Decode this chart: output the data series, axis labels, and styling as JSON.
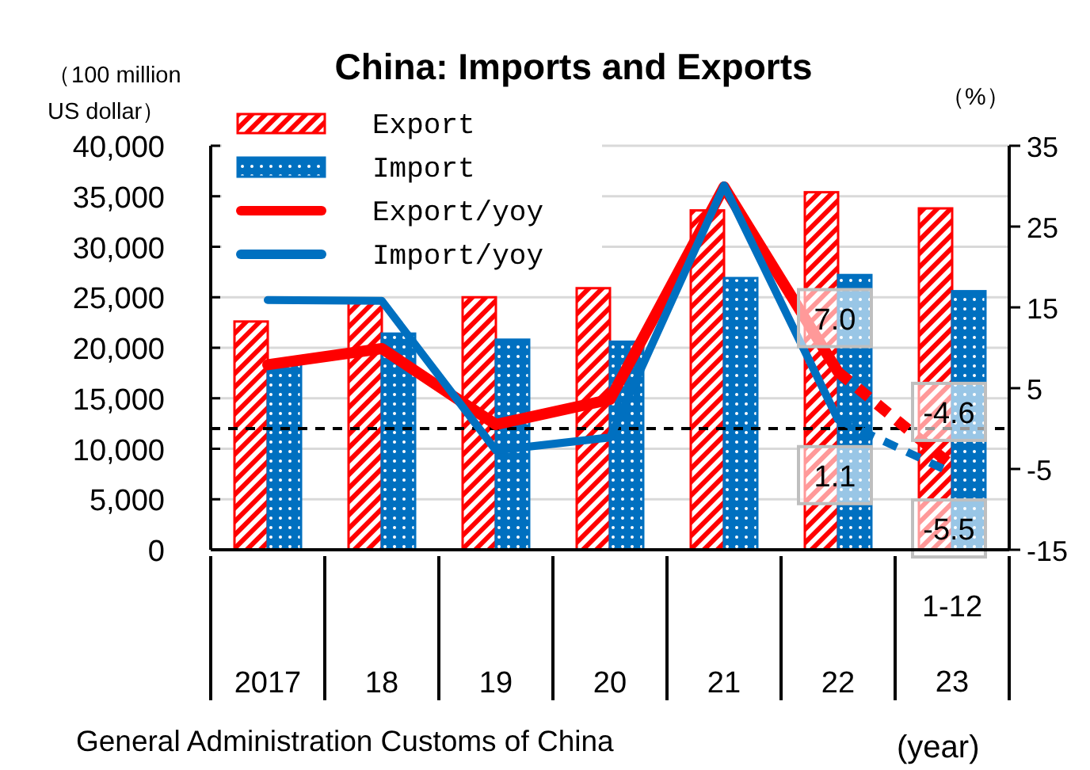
{
  "chart_data": {
    "type": "bar",
    "title": "China: Imports and Exports",
    "ylabel": "（100 million\nUS dollar）",
    "y2label": "（%）",
    "xlabel": "(year)",
    "annotations": [
      "General Administration Customs of China"
    ],
    "categories": [
      "2017",
      "18",
      "19",
      "20",
      "21",
      "22",
      "1-12\n23"
    ],
    "series": [
      {
        "name": "Export",
        "color": "#ff0000",
        "values": [
          22600,
          24900,
          25000,
          25900,
          33600,
          35400,
          33800
        ]
      },
      {
        "name": "Import",
        "color": "#0070c0",
        "values": [
          18400,
          21400,
          20800,
          20600,
          26900,
          27200,
          25600
        ]
      },
      {
        "name": "Export/yoy",
        "type": "line",
        "axis": "y2",
        "color": "#ff0000",
        "line_style": "solid",
        "values": [
          7.9,
          9.9,
          0.5,
          3.6,
          29.9,
          7.0,
          null
        ]
      },
      {
        "name": "Import/yoy",
        "type": "line",
        "axis": "y2",
        "color": "#0070c0",
        "line_style": "solid",
        "values": [
          15.9,
          15.8,
          -2.7,
          -1.1,
          30.1,
          1.1,
          null
        ]
      },
      {
        "type": "line",
        "axis": "y2",
        "color": "#ff0000",
        "line_style": "dashed",
        "values": [
          null,
          null,
          null,
          null,
          null,
          7.0,
          -4.6
        ],
        "value_labels": [
          null,
          null,
          null,
          null,
          null,
          "7.0",
          "-4.6"
        ]
      },
      {
        "type": "line",
        "axis": "y2",
        "color": "#0070c0",
        "line_style": "dashed",
        "values": [
          null,
          null,
          null,
          null,
          null,
          1.1,
          -5.5
        ],
        "value_labels": [
          null,
          null,
          null,
          null,
          null,
          "1.1",
          "-5.5"
        ]
      }
    ],
    "ylim": [
      0,
      40000
    ],
    "yticks": [
      0,
      {
        "value": 5000,
        "label": "5,000"
      },
      {
        "value": 10000,
        "label": "10,000"
      },
      {
        "value": 15000,
        "label": "15,000"
      },
      {
        "value": 20000,
        "label": "20,000"
      },
      {
        "value": 25000,
        "label": "25,000"
      },
      {
        "value": 30000,
        "label": "30,000"
      },
      {
        "value": 35000,
        "label": "35,000"
      },
      {
        "value": 40000,
        "label": "40,000"
      }
    ],
    "y2lim": [
      -15,
      35
    ],
    "y2ticks": [
      -15,
      -5,
      5,
      15,
      25,
      35
    ],
    "ref_lines": [
      {
        "axis": "y2",
        "value": 0,
        "color": "#000000",
        "line_style": "dashed"
      }
    ],
    "grid": "y",
    "legend": "top left"
  }
}
